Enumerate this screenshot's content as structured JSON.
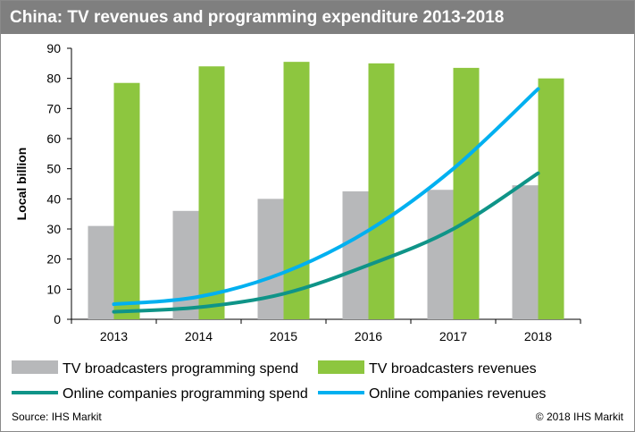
{
  "title": "China: TV revenues and programming expenditure 2013-2018",
  "source": "Source: IHS Markit",
  "copyright": "© 2018 IHS Markit",
  "chart_data": {
    "type": "bar",
    "categories": [
      "2013",
      "2014",
      "2015",
      "2016",
      "2017",
      "2018"
    ],
    "ylabel": "Local billion",
    "xlabel": "",
    "ylim": [
      0,
      90
    ],
    "yticks": [
      0,
      10,
      20,
      30,
      40,
      50,
      60,
      70,
      80,
      90
    ],
    "grid": false,
    "legend_position": "bottom",
    "series": [
      {
        "name": "TV broadcasters programming spend",
        "kind": "bar",
        "color": "#b7b8ba",
        "values": [
          31,
          36,
          40,
          42.5,
          43,
          44.5
        ]
      },
      {
        "name": "TV broadcasters revenues",
        "kind": "bar",
        "color": "#8dc63f",
        "values": [
          78.5,
          84,
          85.5,
          85,
          83.5,
          80
        ]
      },
      {
        "name": "Online companies programming spend",
        "kind": "line",
        "color": "#0f9488",
        "values": [
          2.5,
          4,
          8.5,
          18,
          30,
          48.5
        ]
      },
      {
        "name": "Online companies revenues",
        "kind": "line",
        "color": "#00b0f0",
        "values": [
          5,
          7.5,
          15.5,
          29.5,
          50,
          76.5
        ]
      }
    ]
  }
}
